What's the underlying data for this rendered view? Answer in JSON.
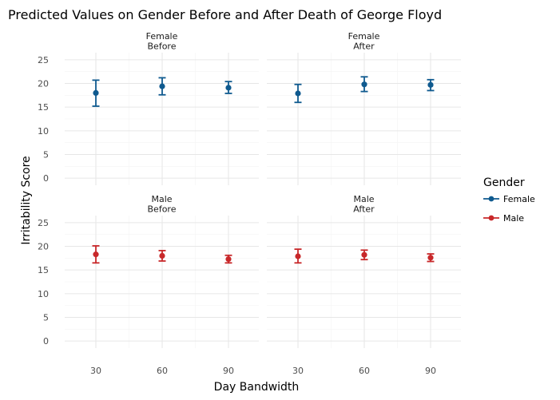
{
  "chart_data": {
    "type": "scatter",
    "title": "Predicted Values on Gender Before and After Death of George Floyd",
    "xlabel": "Day Bandwidth",
    "ylabel": "Irritability Score",
    "x_categories": [
      "30",
      "60",
      "90"
    ],
    "y_ticks": [
      0,
      5,
      10,
      15,
      20,
      25
    ],
    "ylim": [
      -1.5,
      26.5
    ],
    "grid": true,
    "legend": {
      "title": "Gender",
      "position": "right",
      "entries": [
        {
          "label": "Female",
          "color": "#0f5a8f"
        },
        {
          "label": "Male",
          "color": "#c8282a"
        }
      ]
    },
    "panels": [
      {
        "strip": [
          "Female",
          "Before"
        ],
        "gender": "Female",
        "row": 0,
        "col": 0,
        "points": [
          {
            "x": "30",
            "y": 18.0,
            "lo": 15.2,
            "hi": 20.7
          },
          {
            "x": "60",
            "y": 19.4,
            "lo": 17.6,
            "hi": 21.2
          },
          {
            "x": "90",
            "y": 19.1,
            "lo": 17.9,
            "hi": 20.4
          }
        ]
      },
      {
        "strip": [
          "Female",
          "After"
        ],
        "gender": "Female",
        "row": 0,
        "col": 1,
        "points": [
          {
            "x": "30",
            "y": 17.9,
            "lo": 16.0,
            "hi": 19.8
          },
          {
            "x": "60",
            "y": 19.8,
            "lo": 18.3,
            "hi": 21.4
          },
          {
            "x": "90",
            "y": 19.7,
            "lo": 18.5,
            "hi": 20.8
          }
        ]
      },
      {
        "strip": [
          "Male",
          "Before"
        ],
        "gender": "Male",
        "row": 1,
        "col": 0,
        "points": [
          {
            "x": "30",
            "y": 18.3,
            "lo": 16.5,
            "hi": 20.1
          },
          {
            "x": "60",
            "y": 18.0,
            "lo": 16.9,
            "hi": 19.1
          },
          {
            "x": "90",
            "y": 17.3,
            "lo": 16.5,
            "hi": 18.1
          }
        ]
      },
      {
        "strip": [
          "Male",
          "After"
        ],
        "gender": "Male",
        "row": 1,
        "col": 1,
        "points": [
          {
            "x": "30",
            "y": 17.9,
            "lo": 16.5,
            "hi": 19.4
          },
          {
            "x": "60",
            "y": 18.2,
            "lo": 17.2,
            "hi": 19.2
          },
          {
            "x": "90",
            "y": 17.6,
            "lo": 16.8,
            "hi": 18.4
          }
        ]
      }
    ]
  }
}
